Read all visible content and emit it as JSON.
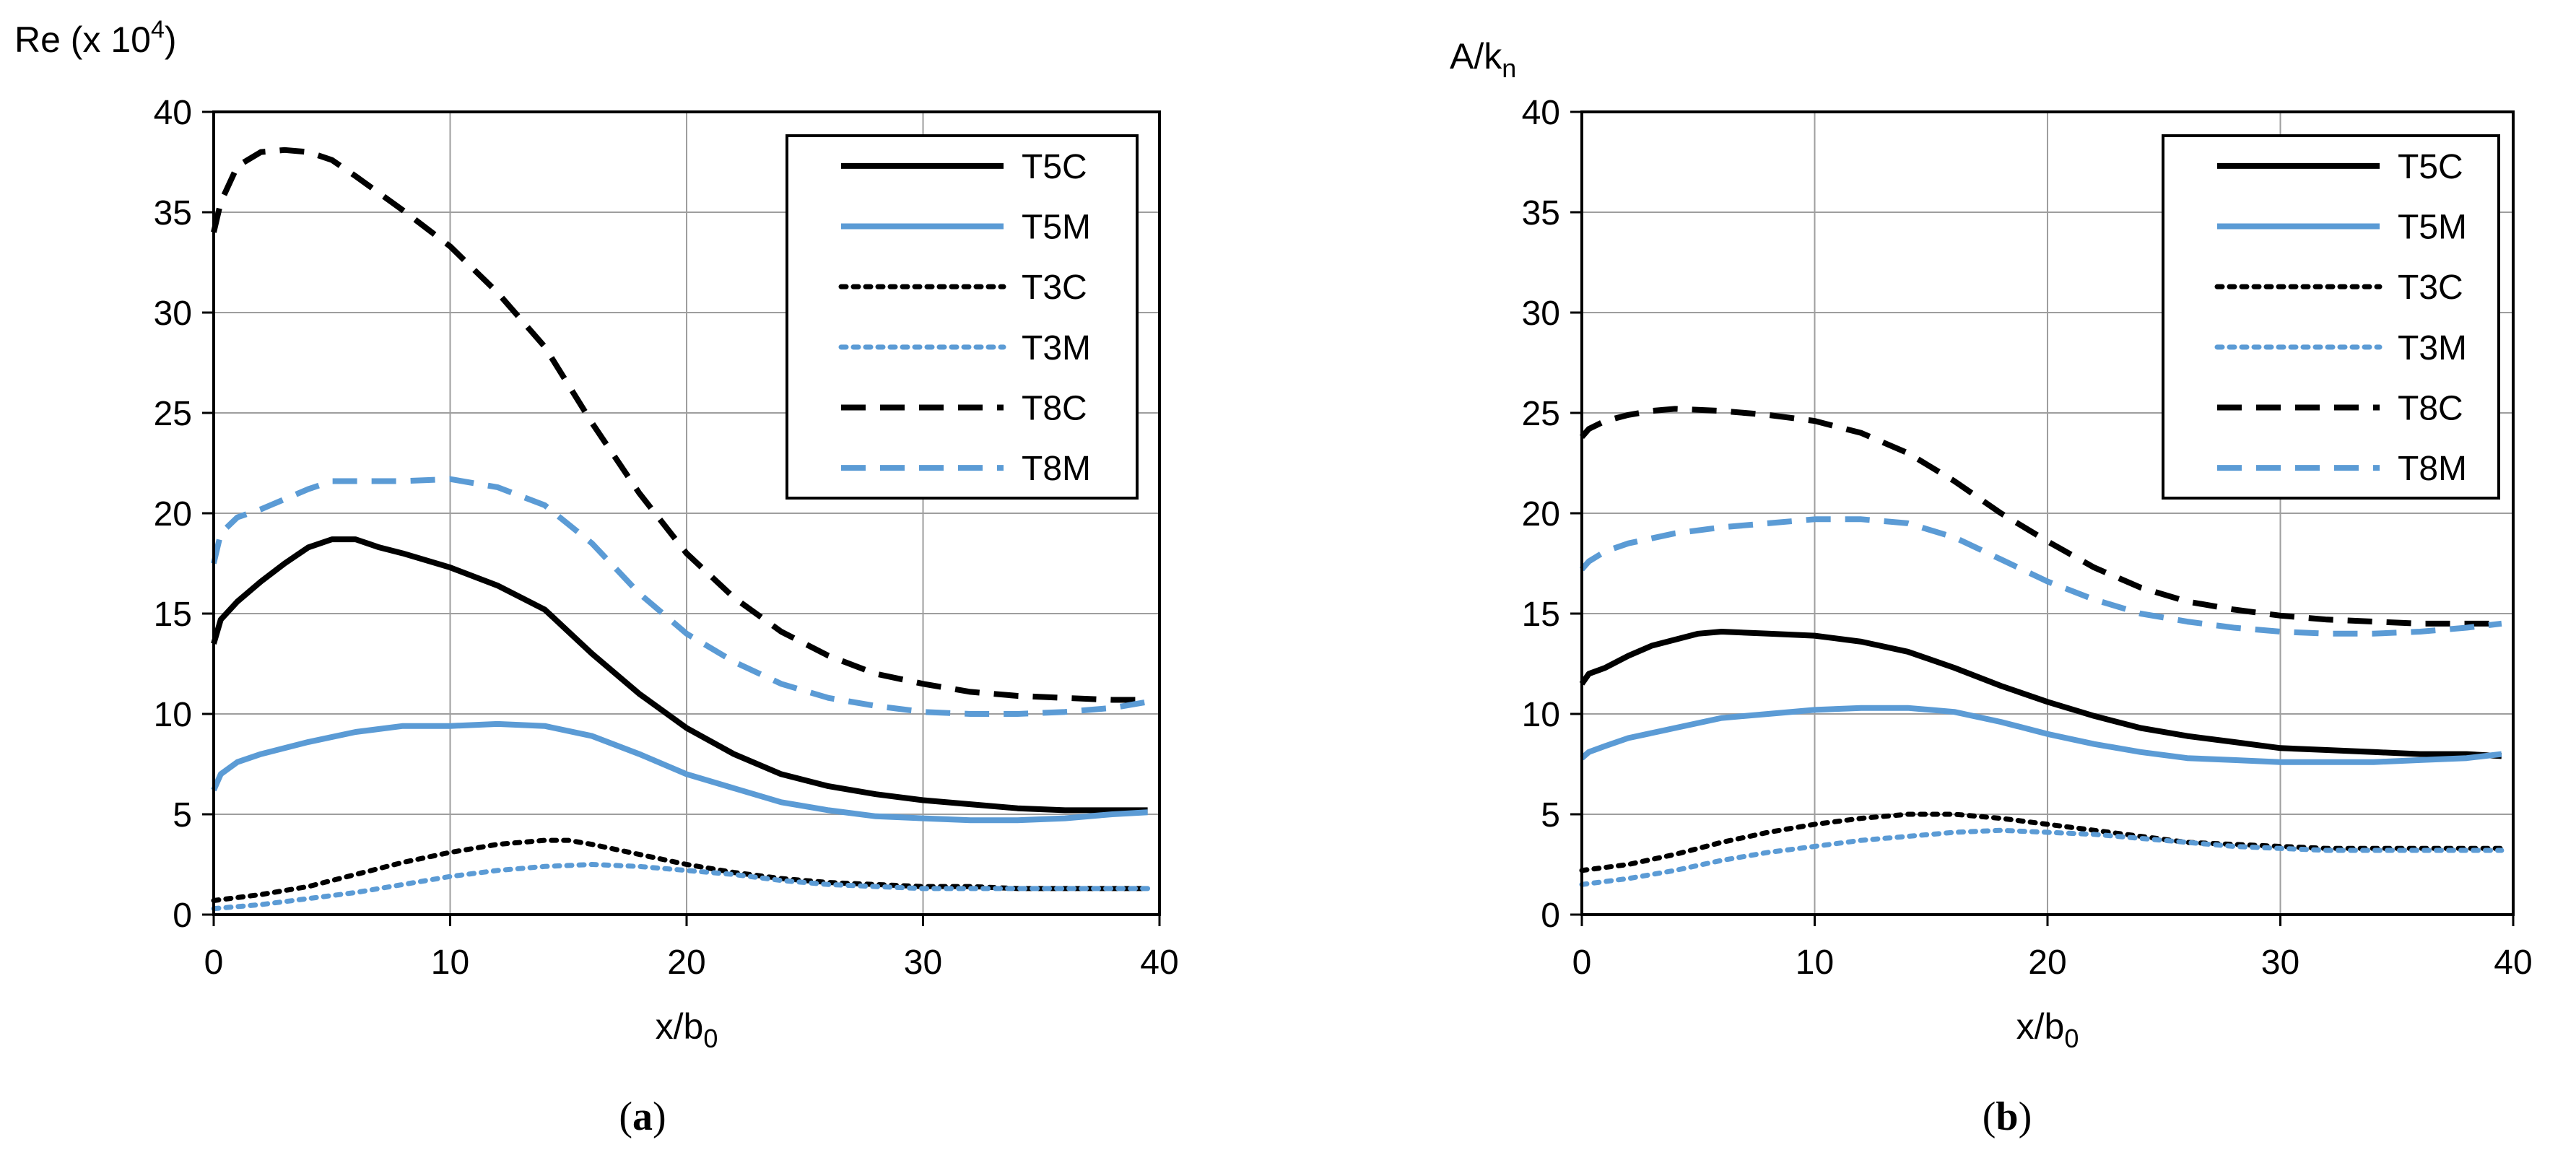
{
  "chart_data": [
    {
      "id": "a",
      "type": "line",
      "panel_label": "a",
      "xlabel": "x/b",
      "xlabel_sub": "0",
      "ylabel": "Re (x 10",
      "ylabel_sup": "4",
      "ylabel_tail": ")",
      "xlim": [
        0,
        40
      ],
      "ylim": [
        0,
        40
      ],
      "xticks": [
        0,
        10,
        20,
        30,
        40
      ],
      "yticks": [
        0,
        5,
        10,
        15,
        20,
        25,
        30,
        35,
        40
      ],
      "grid": true,
      "legend_position": "top-right",
      "series": [
        {
          "name": "T5C",
          "color": "#000000",
          "style": "solid",
          "x": [
            0,
            0.3,
            1,
            2,
            3,
            4,
            5,
            6,
            7,
            8,
            10,
            12,
            14,
            16,
            18,
            20,
            22,
            24,
            26,
            28,
            30,
            32,
            34,
            36,
            38,
            39.5
          ],
          "y": [
            13.5,
            14.7,
            15.6,
            16.6,
            17.5,
            18.3,
            18.7,
            18.7,
            18.3,
            18.0,
            17.3,
            16.4,
            15.2,
            13.0,
            11.0,
            9.3,
            8.0,
            7.0,
            6.4,
            6.0,
            5.7,
            5.5,
            5.3,
            5.2,
            5.2,
            5.2
          ]
        },
        {
          "name": "T5M",
          "color": "#5B9BD5",
          "style": "solid",
          "x": [
            0,
            0.3,
            1,
            2,
            4,
            6,
            8,
            10,
            12,
            14,
            16,
            18,
            20,
            22,
            24,
            26,
            28,
            30,
            32,
            34,
            36,
            38,
            39.5
          ],
          "y": [
            6.2,
            7.0,
            7.6,
            8.0,
            8.6,
            9.1,
            9.4,
            9.4,
            9.5,
            9.4,
            8.9,
            8.0,
            7.0,
            6.3,
            5.6,
            5.2,
            4.9,
            4.8,
            4.7,
            4.7,
            4.8,
            5.0,
            5.1
          ]
        },
        {
          "name": "T3C",
          "color": "#000000",
          "style": "dotted",
          "x": [
            0,
            2,
            4,
            6,
            8,
            10,
            12,
            14,
            15,
            16,
            18,
            20,
            22,
            24,
            26,
            28,
            30,
            32,
            34,
            36,
            38,
            39.5
          ],
          "y": [
            0.7,
            1.0,
            1.4,
            2.0,
            2.6,
            3.1,
            3.5,
            3.7,
            3.7,
            3.5,
            3.0,
            2.5,
            2.1,
            1.8,
            1.6,
            1.5,
            1.4,
            1.4,
            1.3,
            1.3,
            1.3,
            1.3
          ]
        },
        {
          "name": "T3M",
          "color": "#5B9BD5",
          "style": "dotted",
          "x": [
            0,
            2,
            4,
            6,
            8,
            10,
            12,
            14,
            16,
            18,
            20,
            22,
            24,
            26,
            28,
            30,
            32,
            34,
            36,
            38,
            39.5
          ],
          "y": [
            0.3,
            0.5,
            0.8,
            1.1,
            1.5,
            1.9,
            2.2,
            2.4,
            2.5,
            2.4,
            2.2,
            2.0,
            1.7,
            1.5,
            1.4,
            1.3,
            1.3,
            1.3,
            1.3,
            1.3,
            1.3
          ]
        },
        {
          "name": "T8C",
          "color": "#000000",
          "style": "dashed",
          "x": [
            0,
            0.3,
            1,
            2,
            3,
            4,
            5,
            6,
            8,
            10,
            12,
            14,
            16,
            18,
            20,
            22,
            24,
            26,
            28,
            30,
            32,
            34,
            36,
            38,
            39.5
          ],
          "y": [
            34.0,
            35.5,
            37.3,
            38.0,
            38.1,
            38.0,
            37.6,
            36.8,
            35.1,
            33.3,
            31.0,
            28.3,
            24.5,
            21.0,
            18.0,
            15.8,
            14.1,
            12.9,
            12.0,
            11.5,
            11.1,
            10.9,
            10.8,
            10.7,
            10.7
          ]
        },
        {
          "name": "T8M",
          "color": "#5B9BD5",
          "style": "dashed",
          "x": [
            0,
            0.3,
            1,
            2,
            3,
            4,
            5,
            6,
            8,
            10,
            12,
            14,
            16,
            18,
            20,
            22,
            24,
            26,
            28,
            30,
            32,
            34,
            36,
            38,
            39.5
          ],
          "y": [
            17.5,
            19.0,
            19.8,
            20.2,
            20.7,
            21.2,
            21.6,
            21.6,
            21.6,
            21.7,
            21.3,
            20.4,
            18.5,
            16.0,
            14.0,
            12.6,
            11.5,
            10.8,
            10.4,
            10.1,
            10.0,
            10.0,
            10.1,
            10.3,
            10.6
          ]
        }
      ]
    },
    {
      "id": "b",
      "type": "line",
      "panel_label": "b",
      "xlabel": "x/b",
      "xlabel_sub": "0",
      "ylabel": "A/k",
      "ylabel_sub": "n",
      "xlim": [
        0,
        40
      ],
      "ylim": [
        0,
        40
      ],
      "xticks": [
        0,
        10,
        20,
        30,
        40
      ],
      "yticks": [
        0,
        5,
        10,
        15,
        20,
        25,
        30,
        35,
        40
      ],
      "grid": true,
      "legend_position": "top-right",
      "series": [
        {
          "name": "T5C",
          "color": "#000000",
          "style": "solid",
          "x": [
            0,
            0.3,
            1,
            2,
            3,
            4,
            5,
            6,
            8,
            10,
            12,
            14,
            16,
            18,
            20,
            22,
            24,
            26,
            28,
            30,
            32,
            34,
            36,
            38,
            39.5
          ],
          "y": [
            11.5,
            12.0,
            12.3,
            12.9,
            13.4,
            13.7,
            14.0,
            14.1,
            14.0,
            13.9,
            13.6,
            13.1,
            12.3,
            11.4,
            10.6,
            9.9,
            9.3,
            8.9,
            8.6,
            8.3,
            8.2,
            8.1,
            8.0,
            8.0,
            7.9
          ]
        },
        {
          "name": "T5M",
          "color": "#5B9BD5",
          "style": "solid",
          "x": [
            0,
            0.3,
            1,
            2,
            4,
            6,
            8,
            10,
            12,
            14,
            16,
            18,
            20,
            22,
            24,
            26,
            28,
            30,
            32,
            34,
            36,
            38,
            39.5
          ],
          "y": [
            7.8,
            8.1,
            8.4,
            8.8,
            9.3,
            9.8,
            10.0,
            10.2,
            10.3,
            10.3,
            10.1,
            9.6,
            9.0,
            8.5,
            8.1,
            7.8,
            7.7,
            7.6,
            7.6,
            7.6,
            7.7,
            7.8,
            8.0
          ]
        },
        {
          "name": "T3C",
          "color": "#000000",
          "style": "dotted",
          "x": [
            0,
            2,
            4,
            6,
            8,
            10,
            12,
            14,
            16,
            18,
            20,
            22,
            24,
            26,
            28,
            30,
            32,
            34,
            36,
            38,
            39.5
          ],
          "y": [
            2.2,
            2.5,
            3.0,
            3.6,
            4.1,
            4.5,
            4.8,
            5.0,
            5.0,
            4.8,
            4.5,
            4.2,
            3.9,
            3.6,
            3.5,
            3.4,
            3.3,
            3.3,
            3.3,
            3.3,
            3.3
          ]
        },
        {
          "name": "T3M",
          "color": "#5B9BD5",
          "style": "dotted",
          "x": [
            0,
            2,
            4,
            6,
            8,
            10,
            12,
            14,
            16,
            18,
            20,
            22,
            24,
            26,
            28,
            30,
            32,
            34,
            36,
            38,
            39.5
          ],
          "y": [
            1.5,
            1.8,
            2.2,
            2.7,
            3.1,
            3.4,
            3.7,
            3.9,
            4.1,
            4.2,
            4.1,
            4.0,
            3.8,
            3.6,
            3.4,
            3.3,
            3.2,
            3.2,
            3.2,
            3.2,
            3.2
          ]
        },
        {
          "name": "T8C",
          "color": "#000000",
          "style": "dashed",
          "x": [
            0,
            0.3,
            1,
            2,
            3,
            4,
            6,
            8,
            10,
            12,
            14,
            16,
            18,
            20,
            22,
            24,
            26,
            28,
            30,
            32,
            34,
            36,
            38,
            39.5
          ],
          "y": [
            23.8,
            24.2,
            24.6,
            24.9,
            25.1,
            25.2,
            25.1,
            24.9,
            24.6,
            24.0,
            23.0,
            21.6,
            20.0,
            18.6,
            17.3,
            16.3,
            15.6,
            15.2,
            14.9,
            14.7,
            14.6,
            14.5,
            14.5,
            14.5
          ]
        },
        {
          "name": "T8M",
          "color": "#5B9BD5",
          "style": "dashed",
          "x": [
            0,
            0.3,
            1,
            2,
            4,
            6,
            8,
            10,
            12,
            14,
            16,
            18,
            20,
            22,
            24,
            26,
            28,
            30,
            32,
            34,
            36,
            38,
            39.5
          ],
          "y": [
            17.2,
            17.6,
            18.1,
            18.5,
            19.0,
            19.3,
            19.5,
            19.7,
            19.7,
            19.5,
            18.8,
            17.7,
            16.6,
            15.7,
            15.0,
            14.6,
            14.3,
            14.1,
            14.0,
            14.0,
            14.1,
            14.3,
            14.5
          ]
        }
      ]
    }
  ]
}
